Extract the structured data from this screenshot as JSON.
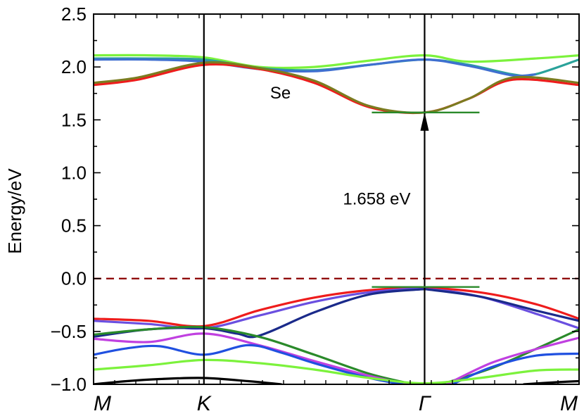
{
  "chart_data": {
    "type": "line",
    "title": "",
    "xlabel": "",
    "ylabel": "Energy/eV",
    "ylim": [
      -1.0,
      2.5
    ],
    "xlim": [
      0,
      4.4
    ],
    "grid": false,
    "yticks": [
      {
        "value": -1.0,
        "label": "−1.0"
      },
      {
        "value": -0.5,
        "label": "−0.5"
      },
      {
        "value": 0.0,
        "label": "0.0"
      },
      {
        "value": 0.5,
        "label": "0.5"
      },
      {
        "value": 1.0,
        "label": "1.0"
      },
      {
        "value": 1.5,
        "label": "1.5"
      },
      {
        "value": 2.0,
        "label": "2.0"
      },
      {
        "value": 2.5,
        "label": "2.5"
      }
    ],
    "kpoints": [
      {
        "x": 0,
        "label": "M"
      },
      {
        "x": 1.0,
        "label": "K"
      },
      {
        "x": 3.0,
        "label": "Γ"
      },
      {
        "x": 4.4,
        "label": "M"
      }
    ],
    "fermi_level": {
      "value": 0.0,
      "color": "#8b0000"
    },
    "annotations": [
      {
        "text": "Se",
        "x": 1.6,
        "y": 1.7
      },
      {
        "text": "1.658 eV",
        "x": 2.26,
        "y": 0.7
      }
    ],
    "gap_arrow": {
      "x": 3.0,
      "from": -0.1,
      "to": 1.57,
      "cbm_level": 1.57,
      "vbm_level": -0.08,
      "marker_color": "#2a8a2a"
    },
    "series": [
      {
        "name": "cb-lightgreen",
        "color": "#7cf23c",
        "x": [
          0,
          0.5,
          1.0,
          1.5,
          2.0,
          2.5,
          3.0,
          3.4,
          4.0,
          4.4
        ],
        "y": [
          2.11,
          2.11,
          2.09,
          2.0,
          2.0,
          2.06,
          2.11,
          2.05,
          2.08,
          2.11
        ]
      },
      {
        "name": "cb-teal",
        "color": "#2aa29a",
        "x": [
          0,
          0.5,
          1.0,
          1.5,
          2.0,
          2.5,
          3.0,
          3.4,
          3.8,
          4.0,
          4.4
        ],
        "y": [
          2.08,
          2.08,
          2.07,
          1.99,
          1.97,
          2.02,
          2.07,
          2.02,
          1.93,
          1.93,
          2.07
        ]
      },
      {
        "name": "cb-blue",
        "color": "#3f6fd0",
        "x": [
          0,
          0.5,
          1.0,
          1.5,
          2.0,
          2.5,
          3.0,
          3.4,
          3.8,
          4.0
        ],
        "y": [
          2.07,
          2.07,
          2.05,
          1.98,
          1.96,
          2.02,
          2.07,
          2.01,
          1.92,
          1.93
        ]
      },
      {
        "name": "cb-red",
        "color": "#ee1c1c",
        "x": [
          0,
          0.4,
          1.0,
          1.5,
          2.0,
          2.5,
          3.0,
          3.4,
          3.8,
          4.4
        ],
        "y": [
          1.83,
          1.88,
          2.02,
          1.98,
          1.85,
          1.62,
          1.57,
          1.7,
          1.88,
          1.83
        ]
      },
      {
        "name": "cb-olive",
        "color": "#7b7c20",
        "x": [
          0,
          0.4,
          1.0,
          1.5,
          2.0,
          2.5,
          3.0,
          3.4,
          3.8,
          4.4
        ],
        "y": [
          1.85,
          1.9,
          2.04,
          1.99,
          1.87,
          1.63,
          1.57,
          1.7,
          1.9,
          1.85
        ]
      },
      {
        "name": "vb-red",
        "color": "#ee1c1c",
        "x": [
          0,
          0.5,
          1.0,
          1.5,
          2.0,
          2.5,
          3.0,
          3.5,
          4.0,
          4.4
        ],
        "y": [
          -0.38,
          -0.4,
          -0.45,
          -0.3,
          -0.18,
          -0.11,
          -0.09,
          -0.13,
          -0.24,
          -0.38
        ]
      },
      {
        "name": "vb-purple",
        "color": "#6a4fe0",
        "x": [
          0,
          0.5,
          1.0,
          1.5,
          2.0,
          2.5,
          3.0,
          3.5,
          4.0,
          4.4
        ],
        "y": [
          -0.4,
          -0.43,
          -0.47,
          -0.35,
          -0.22,
          -0.13,
          -0.1,
          -0.17,
          -0.33,
          -0.47
        ]
      },
      {
        "name": "vb-navy",
        "color": "#1a2a8a",
        "x": [
          0,
          0.5,
          1.0,
          1.3,
          1.5,
          2.0,
          2.5,
          3.0
        ],
        "y": [
          -0.55,
          -0.48,
          -0.47,
          -0.52,
          -0.54,
          -0.32,
          -0.15,
          -0.1
        ]
      },
      {
        "name": "vb-navy-right",
        "color": "#1a2a8a",
        "x": [
          3.0,
          3.5,
          4.0,
          4.4
        ],
        "y": [
          -0.1,
          -0.17,
          -0.3,
          -0.4
        ]
      },
      {
        "name": "vb-green",
        "color": "#2a8a2a",
        "x": [
          0,
          0.5,
          1.0,
          1.5,
          2.0,
          2.5,
          2.9
        ],
        "y": [
          -0.53,
          -0.48,
          -0.46,
          -0.55,
          -0.72,
          -0.9,
          -1.0
        ]
      },
      {
        "name": "vb-green-right",
        "color": "#2a8a2a",
        "x": [
          3.15,
          3.6,
          4.0,
          4.4
        ],
        "y": [
          -1.0,
          -0.85,
          -0.67,
          -0.48
        ]
      },
      {
        "name": "vb-magenta",
        "color": "#c040e0",
        "x": [
          0,
          0.5,
          1.0,
          1.5,
          2.0,
          2.5,
          2.85
        ],
        "y": [
          -0.57,
          -0.6,
          -0.52,
          -0.63,
          -0.78,
          -0.92,
          -1.0
        ]
      },
      {
        "name": "vb-magenta-right",
        "color": "#c040e0",
        "x": [
          3.2,
          3.6,
          4.0,
          4.4
        ],
        "y": [
          -1.0,
          -0.8,
          -0.67,
          -0.56
        ]
      },
      {
        "name": "vb-blue",
        "color": "#2050e0",
        "x": [
          0,
          0.3,
          0.6,
          1.0,
          1.4,
          1.7,
          2.0,
          2.5,
          2.8
        ],
        "y": [
          -0.72,
          -0.66,
          -0.64,
          -0.72,
          -0.63,
          -0.7,
          -0.8,
          -0.94,
          -1.0
        ]
      },
      {
        "name": "vb-blue-right",
        "color": "#2050e0",
        "x": [
          3.25,
          3.6,
          4.0,
          4.4
        ],
        "y": [
          -1.0,
          -0.84,
          -0.73,
          -0.71
        ]
      },
      {
        "name": "vb-lightgreen",
        "color": "#7cf23c",
        "x": [
          0,
          0.5,
          1.0,
          1.5,
          2.0,
          2.5,
          3.0,
          3.5,
          4.0,
          4.4
        ],
        "y": [
          -0.86,
          -0.82,
          -0.77,
          -0.8,
          -0.86,
          -0.94,
          -0.99,
          -0.94,
          -0.87,
          -0.86
        ]
      },
      {
        "name": "vb-black",
        "color": "#000000",
        "x": [
          0,
          0.3,
          0.6,
          1.0,
          1.4,
          1.7
        ],
        "y": [
          -1.0,
          -0.97,
          -0.95,
          -0.94,
          -0.97,
          -1.0
        ]
      },
      {
        "name": "vb-black-right",
        "color": "#000000",
        "x": [
          3.9,
          4.2,
          4.4
        ],
        "y": [
          -1.0,
          -0.98,
          -0.97
        ]
      }
    ]
  }
}
